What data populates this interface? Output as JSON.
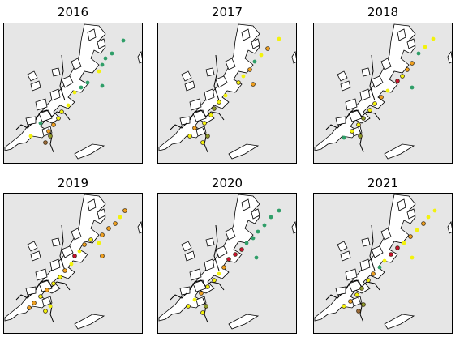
{
  "panels": [
    {
      "title": "2016"
    },
    {
      "title": "2017"
    },
    {
      "title": "2018"
    },
    {
      "title": "2019"
    },
    {
      "title": "2020"
    },
    {
      "title": "2021"
    }
  ],
  "colors": {
    "sea": "#e6e6e6",
    "land": "#ffffff",
    "frame": "#000000",
    "markers": {
      "green": "#2f9e68",
      "yellow": "#f2f20c",
      "orange": "#f0a020",
      "red": "#c8102e",
      "olive": "#8c9a2a",
      "brown": "#9a6a3a"
    }
  }
}
